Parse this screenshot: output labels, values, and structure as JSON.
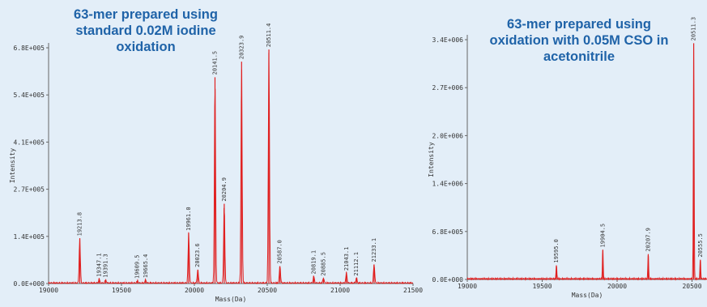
{
  "colors": {
    "background": "#e3eef8",
    "trace": "#e02020",
    "axis": "#666666",
    "title": "#1f63a8"
  },
  "chart_data": [
    {
      "type": "line",
      "title": "63-mer prepared using\nstandard 0.02M iodine\noxidation",
      "xlabel": "Mass(Da)",
      "ylabel": "Intensity",
      "xlim": [
        19000,
        21500
      ],
      "ylim": [
        0,
        680000
      ],
      "x_ticks": [
        "19000",
        "19500",
        "20000",
        "20500",
        "21000",
        "21500"
      ],
      "y_ticks": [
        "0.0E+000",
        "1.4E+005",
        "2.7E+005",
        "4.1E+005",
        "5.4E+005",
        "6.8E+005"
      ],
      "peaks": [
        {
          "mass": 19213.8,
          "label": "19213.8",
          "intensity": 130000
        },
        {
          "mass": 19347.1,
          "label": "19347.1",
          "intensity": 12000
        },
        {
          "mass": 19391.3,
          "label": "19391.3",
          "intensity": 10000
        },
        {
          "mass": 19609.5,
          "label": "19609.5",
          "intensity": 7000
        },
        {
          "mass": 19665.4,
          "label": "19665.4",
          "intensity": 9000
        },
        {
          "mass": 19961.0,
          "label": "19961.0",
          "intensity": 145000
        },
        {
          "mass": 20023.6,
          "label": "20023.6",
          "intensity": 40000
        },
        {
          "mass": 20141.5,
          "label": "20141.5",
          "intensity": 595000
        },
        {
          "mass": 20204.9,
          "label": "20204.9",
          "intensity": 230000
        },
        {
          "mass": 20323.9,
          "label": "20323.9",
          "intensity": 640000
        },
        {
          "mass": 20511.4,
          "label": "20511.4",
          "intensity": 675000
        },
        {
          "mass": 20587.0,
          "label": "20587.0",
          "intensity": 50000
        },
        {
          "mass": 20819.1,
          "label": "20819.1",
          "intensity": 20000
        },
        {
          "mass": 20885.5,
          "label": "20885.5",
          "intensity": 15000
        },
        {
          "mass": 21043.1,
          "label": "21043.1",
          "intensity": 30000
        },
        {
          "mass": 21112.1,
          "label": "21112.1",
          "intensity": 15000
        },
        {
          "mass": 21233.1,
          "label": "21233.1",
          "intensity": 55000
        }
      ]
    },
    {
      "type": "line",
      "title": "63-mer prepared using\noxidation with 0.05M CSO in\nacetonitrile",
      "xlabel": "Mass(Da)",
      "ylabel": "Intensity",
      "xlim": [
        19000,
        20600
      ],
      "ylim": [
        0,
        3400000
      ],
      "x_ticks": [
        "19000",
        "19500",
        "20000",
        "20500"
      ],
      "y_ticks": [
        "0.0E+000",
        "6.8E+005",
        "1.4E+006",
        "2.0E+006",
        "2.7E+006",
        "3.4E+006"
      ],
      "peaks": [
        {
          "mass": 19595.0,
          "label": "19595.0",
          "intensity": 200000
        },
        {
          "mass": 19904.5,
          "label": "19904.5",
          "intensity": 420000
        },
        {
          "mass": 20207.9,
          "label": "20207.9",
          "intensity": 360000
        },
        {
          "mass": 20511.3,
          "label": "20511.3",
          "intensity": 3350000
        },
        {
          "mass": 20555.5,
          "label": "20555.5",
          "intensity": 280000
        }
      ]
    }
  ]
}
